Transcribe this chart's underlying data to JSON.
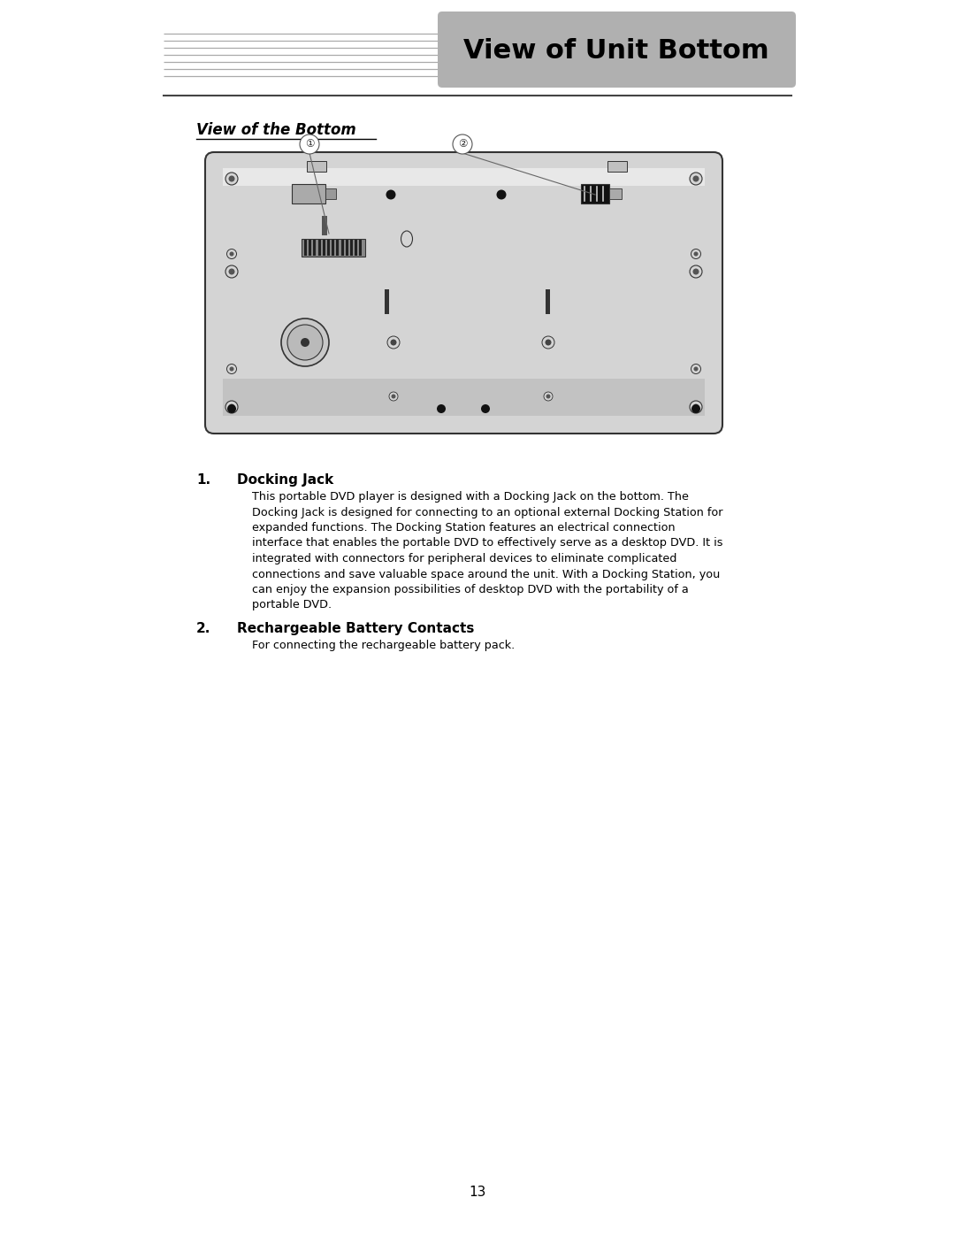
{
  "title": "View of Unit Bottom",
  "title_bg_color": "#b0b0b0",
  "title_text_color": "#000000",
  "section_title": "View of the Bottom",
  "page_number": "13",
  "item1_title": "Docking Jack",
  "item1_body": "This portable DVD player is designed with a Docking Jack on the bottom. The\nDocking Jack is designed for connecting to an optional external Docking Station for\nexpanded functions. The Docking Station features an electrical connection\ninterface that enables the portable DVD to effectively serve as a desktop DVD. It is\nintegrated with connectors for peripheral devices to eliminate complicated\nconnections and save valuable space around the unit. With a Docking Station, you\ncan enjoy the expansion possibilities of desktop DVD with the portability of a\nportable DVD.",
  "item2_title": "Rechargeable Battery Contacts",
  "item2_body": "For connecting the rechargeable battery pack.",
  "bg_color": "#ffffff",
  "device_fill": "#d4d4d4",
  "device_stroke": "#333333"
}
